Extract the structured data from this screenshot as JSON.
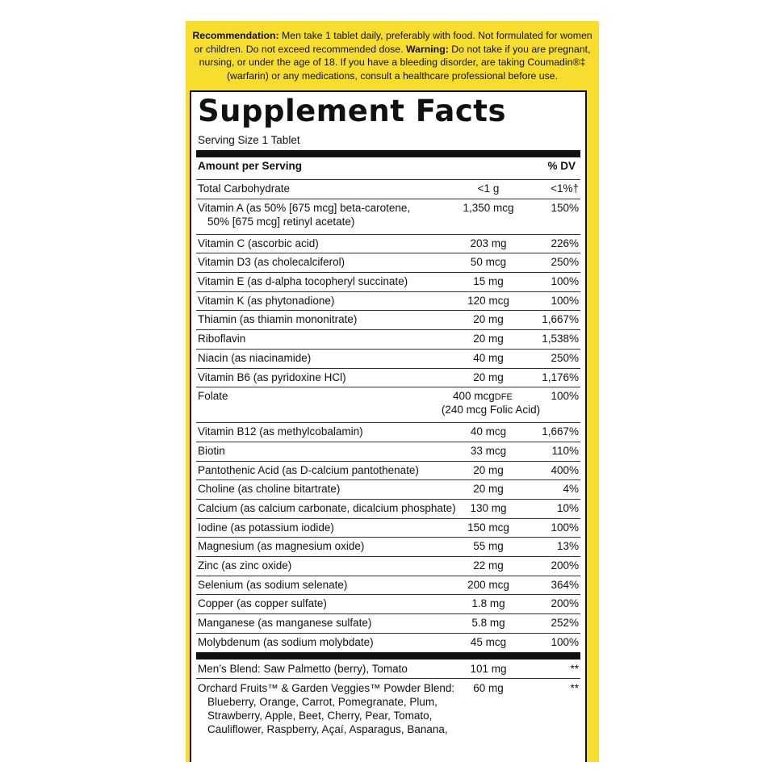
{
  "recommendation": {
    "rec_label": "Recommendation:",
    "rec_text": " Men take 1 tablet daily, preferably with food. Not formulated for women or children. Do not exceed recommended dose. ",
    "warn_label": "Warning:",
    "warn_text": " Do not take if you are pregnant, nursing, or under the age of 18. If you have a bleeding disorder, are taking Coumadin®‡ (warfarin) or any medications, consult a healthcare professional before use."
  },
  "facts": {
    "title": "Supplement Facts",
    "serving_size": "Serving Size 1 Tablet",
    "header_amount": "Amount per Serving",
    "header_dv": "% DV"
  },
  "rows": [
    {
      "name": "Total Carbohydrate",
      "amount": "<1 g",
      "dv": "<1%†"
    },
    {
      "name": "Vitamin A (as 50% [675 mcg] beta-carotene,",
      "name2": "50% [675 mcg] retinyl acetate)",
      "amount": "1,350 mcg",
      "dv": "150%"
    },
    {
      "name": "Vitamin C (ascorbic acid)",
      "amount": "203 mg",
      "dv": "226%"
    },
    {
      "name": "Vitamin D3 (as cholecalciferol)",
      "amount": "50 mcg",
      "dv": "250%"
    },
    {
      "name": "Vitamin E (as d-alpha tocopheryl succinate)",
      "amount": "15 mg",
      "dv": "100%"
    },
    {
      "name": "Vitamin K (as phytonadione)",
      "amount": "120 mcg",
      "dv": "100%"
    },
    {
      "name": "Thiamin (as thiamin mononitrate)",
      "amount": "20 mg",
      "dv": "1,667%"
    },
    {
      "name": "Riboflavin",
      "amount": "20 mg",
      "dv": "1,538%"
    },
    {
      "name": "Niacin (as niacinamide)",
      "amount": "40 mg",
      "dv": "250%"
    },
    {
      "name": "Vitamin B6 (as pyridoxine HCl)",
      "amount": "20 mg",
      "dv": "1,176%"
    },
    {
      "name": "Folate",
      "amount": "400 mcg",
      "amount_unit": "DFE",
      "sub": "(240 mcg Folic Acid)",
      "dv": "100%"
    },
    {
      "name": "Vitamin B12 (as methylcobalamin)",
      "amount": "40 mcg",
      "dv": "1,667%"
    },
    {
      "name": "Biotin",
      "amount": "33 mcg",
      "dv": "110%"
    },
    {
      "name": "Pantothenic Acid (as D-calcium pantothenate)",
      "amount": "20 mg",
      "dv": "400%"
    },
    {
      "name": "Choline (as choline bitartrate)",
      "amount": "20 mg",
      "dv": "4%"
    },
    {
      "name": "Calcium (as calcium carbonate, dicalcium phosphate)",
      "amount": "130 mg",
      "dv": "10%"
    },
    {
      "name": "Iodine (as potassium iodide)",
      "amount": "150 mcg",
      "dv": "100%"
    },
    {
      "name": "Magnesium (as magnesium oxide)",
      "amount": "55 mg",
      "dv": "13%"
    },
    {
      "name": "Zinc (as zinc oxide)",
      "amount": "22 mg",
      "dv": "200%"
    },
    {
      "name": "Selenium (as sodium selenate)",
      "amount": "200 mcg",
      "dv": "364%"
    },
    {
      "name": "Copper (as copper sulfate)",
      "amount": "1.8 mg",
      "dv": "200%"
    },
    {
      "name": "Manganese (as manganese sulfate)",
      "amount": "5.8 mg",
      "dv": "252%"
    },
    {
      "name": "Molybdenum (as sodium molybdate)",
      "amount": "45 mcg",
      "dv": "100%"
    }
  ],
  "blends": [
    {
      "name": "Men’s Blend: Saw Palmetto (berry), Tomato",
      "amount": "101 mg",
      "dv": "**"
    },
    {
      "name": "Orchard Fruits™ & Garden Veggies™ Powder Blend:",
      "amount": "60 mg",
      "dv": "**",
      "ingredients": [
        "Blueberry, Orange, Carrot, Pomegranate, Plum,",
        "Strawberry, Apple, Beet, Cherry, Pear, Tomato,",
        "Cauliflower, Raspberry, Açaí, Asparagus, Banana,"
      ]
    }
  ]
}
